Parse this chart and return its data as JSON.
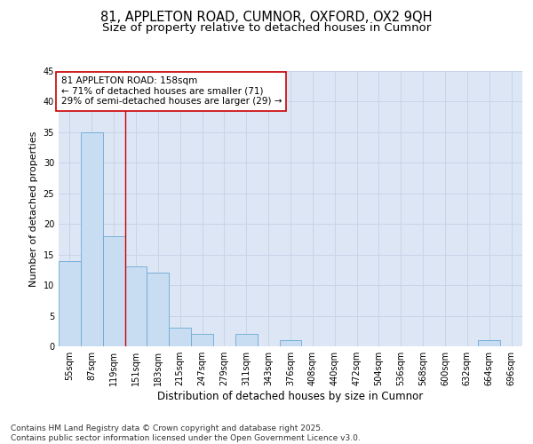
{
  "title1": "81, APPLETON ROAD, CUMNOR, OXFORD, OX2 9QH",
  "title2": "Size of property relative to detached houses in Cumnor",
  "xlabel": "Distribution of detached houses by size in Cumnor",
  "ylabel": "Number of detached properties",
  "categories": [
    "55sqm",
    "87sqm",
    "119sqm",
    "151sqm",
    "183sqm",
    "215sqm",
    "247sqm",
    "279sqm",
    "311sqm",
    "343sqm",
    "376sqm",
    "408sqm",
    "440sqm",
    "472sqm",
    "504sqm",
    "536sqm",
    "568sqm",
    "600sqm",
    "632sqm",
    "664sqm",
    "696sqm"
  ],
  "values": [
    14,
    35,
    18,
    13,
    12,
    3,
    2,
    0,
    2,
    0,
    1,
    0,
    0,
    0,
    0,
    0,
    0,
    0,
    0,
    1,
    0
  ],
  "bar_color": "#c9ddf2",
  "bar_edge_color": "#6aaad4",
  "grid_color": "#c8d4e8",
  "bg_color": "#dce6f5",
  "vline_color": "#cc0000",
  "vline_x_index": 3,
  "annotation_text": "81 APPLETON ROAD: 158sqm\n← 71% of detached houses are smaller (71)\n29% of semi-detached houses are larger (29) →",
  "annotation_box_color": "#cc0000",
  "ylim": [
    0,
    45
  ],
  "yticks": [
    0,
    5,
    10,
    15,
    20,
    25,
    30,
    35,
    40,
    45
  ],
  "footer": "Contains HM Land Registry data © Crown copyright and database right 2025.\nContains public sector information licensed under the Open Government Licence v3.0.",
  "title1_fontsize": 10.5,
  "title2_fontsize": 9.5,
  "xlabel_fontsize": 8.5,
  "ylabel_fontsize": 8,
  "tick_fontsize": 7,
  "annotation_fontsize": 7.5,
  "footer_fontsize": 6.5
}
